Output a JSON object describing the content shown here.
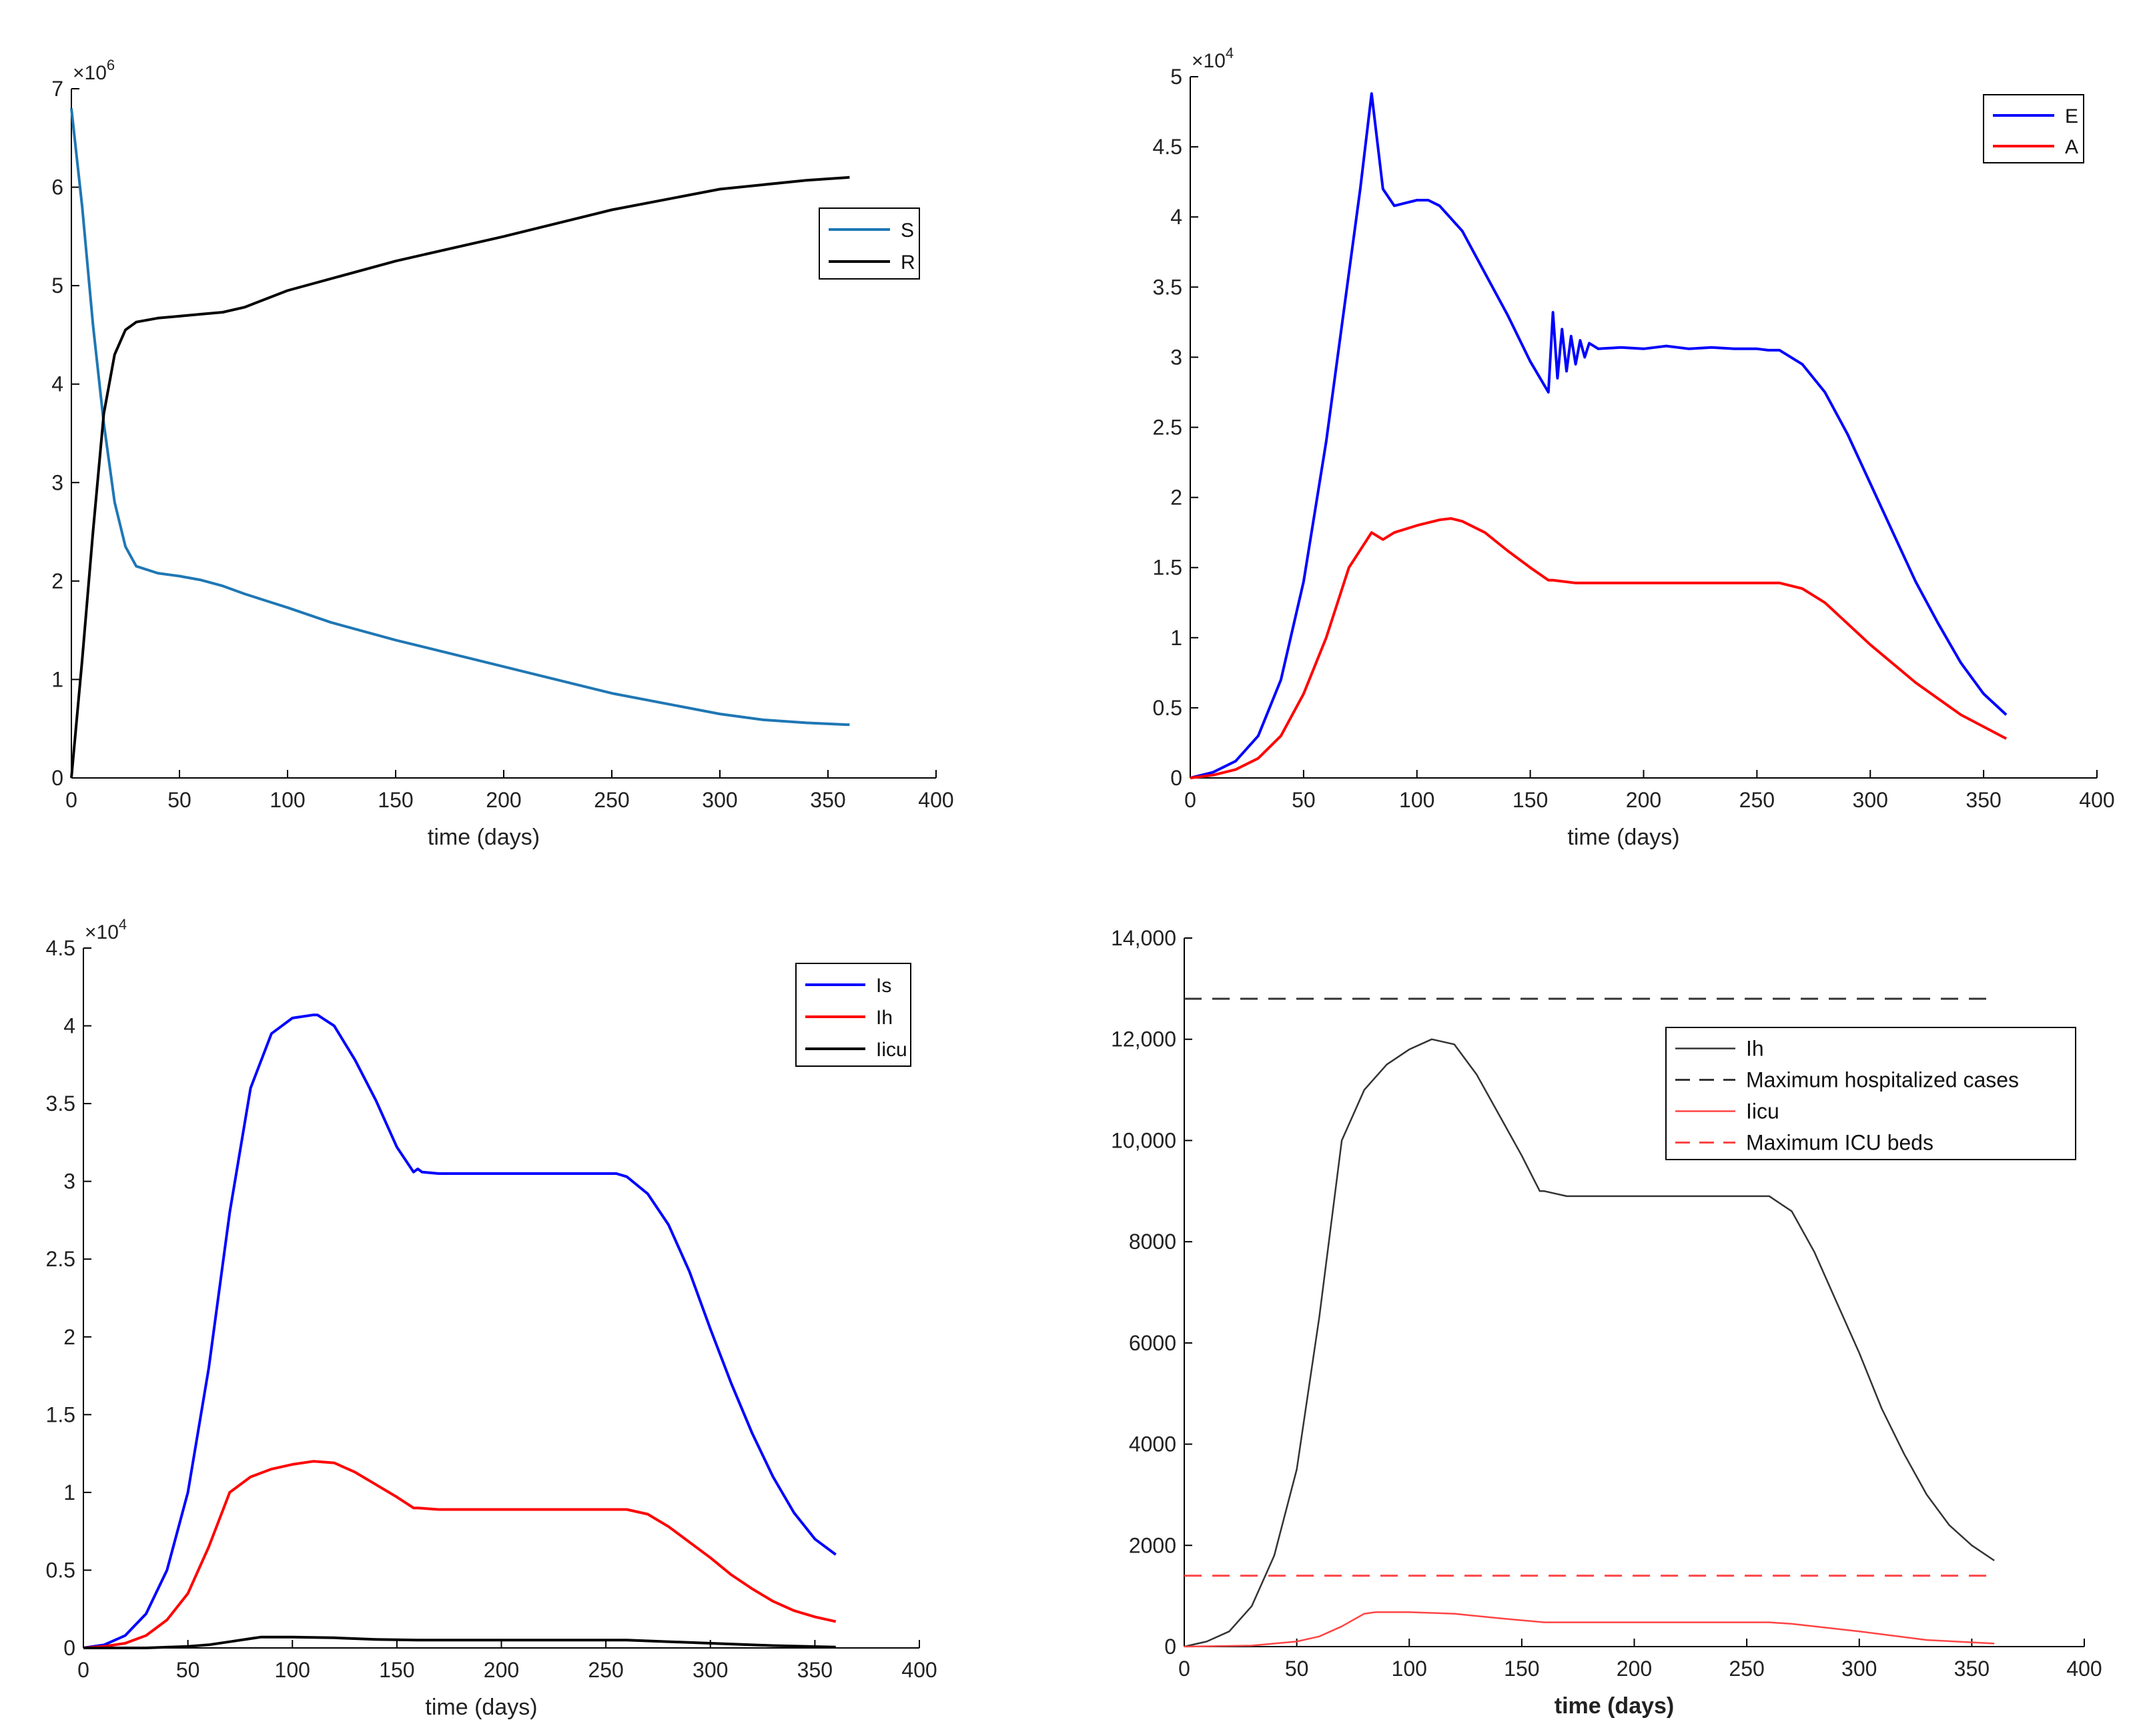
{
  "chart_data": [
    {
      "type": "line",
      "panel": "top-left",
      "xlabel": "time (days)",
      "ylabel": "",
      "xlim": [
        0,
        400
      ],
      "ylim": [
        0,
        7
      ],
      "xticks": [
        "0",
        "50",
        "100",
        "150",
        "200",
        "250",
        "300",
        "350",
        "400"
      ],
      "yticks": [
        "0",
        "1",
        "2",
        "3",
        "4",
        "5",
        "6",
        "7"
      ],
      "y_exponent": {
        "base": "×10",
        "power": "6"
      },
      "legend_position": "top-right",
      "series": [
        {
          "name": "S",
          "color": "#1f77b4",
          "x": [
            0,
            5,
            10,
            15,
            20,
            25,
            30,
            40,
            50,
            60,
            70,
            80,
            90,
            100,
            120,
            150,
            200,
            250,
            300,
            320,
            340,
            360
          ],
          "y": [
            6.8,
            5.8,
            4.6,
            3.6,
            2.8,
            2.35,
            2.15,
            2.08,
            2.05,
            2.01,
            1.95,
            1.87,
            1.8,
            1.73,
            1.58,
            1.4,
            1.13,
            0.86,
            0.65,
            0.59,
            0.56,
            0.54
          ]
        },
        {
          "name": "R",
          "color": "#000000",
          "x": [
            0,
            5,
            10,
            15,
            20,
            25,
            30,
            40,
            50,
            60,
            70,
            80,
            100,
            150,
            200,
            250,
            300,
            340,
            360
          ],
          "y": [
            0,
            1.2,
            2.5,
            3.7,
            4.3,
            4.55,
            4.63,
            4.67,
            4.69,
            4.71,
            4.73,
            4.78,
            4.95,
            5.25,
            5.5,
            5.77,
            5.98,
            6.07,
            6.1
          ]
        }
      ]
    },
    {
      "type": "line",
      "panel": "top-right",
      "xlabel": "time (days)",
      "ylabel": "",
      "xlim": [
        0,
        400
      ],
      "ylim": [
        0,
        5
      ],
      "xticks": [
        "0",
        "50",
        "100",
        "150",
        "200",
        "250",
        "300",
        "350",
        "400"
      ],
      "yticks": [
        "0",
        "0.5",
        "1",
        "1.5",
        "2",
        "2.5",
        "3",
        "3.5",
        "4",
        "4.5",
        "5"
      ],
      "y_exponent": {
        "base": "×10",
        "power": "4"
      },
      "legend_position": "top-right",
      "series": [
        {
          "name": "E",
          "color": "#0000ff",
          "x": [
            0,
            10,
            20,
            30,
            40,
            50,
            60,
            70,
            75,
            80,
            85,
            90,
            95,
            100,
            105,
            110,
            120,
            130,
            140,
            150,
            158,
            160,
            162,
            164,
            166,
            168,
            170,
            172,
            174,
            176,
            180,
            190,
            200,
            210,
            220,
            230,
            240,
            250,
            255,
            260,
            270,
            280,
            290,
            300,
            310,
            320,
            330,
            340,
            350,
            360
          ],
          "y": [
            0,
            0.04,
            0.12,
            0.3,
            0.7,
            1.4,
            2.4,
            3.6,
            4.2,
            4.88,
            4.2,
            4.08,
            4.1,
            4.12,
            4.12,
            4.08,
            3.9,
            3.6,
            3.3,
            2.97,
            2.75,
            3.32,
            2.85,
            3.2,
            2.9,
            3.15,
            2.95,
            3.12,
            3.0,
            3.1,
            3.06,
            3.07,
            3.06,
            3.08,
            3.06,
            3.07,
            3.06,
            3.06,
            3.05,
            3.05,
            2.95,
            2.75,
            2.45,
            2.1,
            1.75,
            1.4,
            1.1,
            0.82,
            0.6,
            0.45
          ]
        },
        {
          "name": "A",
          "color": "#ff0000",
          "x": [
            0,
            10,
            20,
            30,
            40,
            50,
            60,
            70,
            80,
            85,
            90,
            100,
            110,
            115,
            120,
            130,
            140,
            150,
            158,
            160,
            170,
            180,
            200,
            220,
            240,
            250,
            260,
            270,
            280,
            290,
            300,
            320,
            340,
            360
          ],
          "y": [
            0,
            0.02,
            0.06,
            0.14,
            0.3,
            0.6,
            1.0,
            1.5,
            1.75,
            1.7,
            1.75,
            1.8,
            1.84,
            1.85,
            1.83,
            1.75,
            1.62,
            1.5,
            1.41,
            1.41,
            1.39,
            1.39,
            1.39,
            1.39,
            1.39,
            1.39,
            1.39,
            1.35,
            1.25,
            1.1,
            0.95,
            0.68,
            0.45,
            0.28
          ]
        }
      ]
    },
    {
      "type": "line",
      "panel": "bottom-left",
      "xlabel": "time (days)",
      "ylabel": "",
      "xlim": [
        0,
        400
      ],
      "ylim": [
        0,
        4.5
      ],
      "xticks": [
        "0",
        "50",
        "100",
        "150",
        "200",
        "250",
        "300",
        "350",
        "400"
      ],
      "yticks": [
        "0",
        "0.5",
        "1",
        "1.5",
        "2",
        "2.5",
        "3",
        "3.5",
        "4",
        "4.5"
      ],
      "y_exponent": {
        "base": "×10",
        "power": "4"
      },
      "legend_position": "top-right",
      "series": [
        {
          "name": "Is",
          "color": "#0000ff",
          "x": [
            0,
            10,
            20,
            30,
            40,
            50,
            60,
            70,
            80,
            90,
            100,
            110,
            112,
            120,
            130,
            140,
            150,
            158,
            160,
            162,
            170,
            180,
            200,
            220,
            240,
            255,
            260,
            270,
            280,
            290,
            300,
            310,
            320,
            330,
            340,
            350,
            360
          ],
          "y": [
            0,
            0.02,
            0.08,
            0.22,
            0.5,
            1.0,
            1.8,
            2.8,
            3.6,
            3.95,
            4.05,
            4.07,
            4.07,
            4.0,
            3.78,
            3.52,
            3.22,
            3.06,
            3.08,
            3.06,
            3.05,
            3.05,
            3.05,
            3.05,
            3.05,
            3.05,
            3.03,
            2.92,
            2.72,
            2.42,
            2.05,
            1.7,
            1.38,
            1.1,
            0.87,
            0.7,
            0.6
          ]
        },
        {
          "name": "Ih",
          "color": "#ff0000",
          "x": [
            0,
            10,
            20,
            30,
            40,
            50,
            60,
            70,
            80,
            90,
            100,
            110,
            120,
            130,
            140,
            150,
            158,
            160,
            170,
            180,
            200,
            220,
            240,
            260,
            270,
            280,
            290,
            300,
            310,
            320,
            330,
            340,
            350,
            360
          ],
          "y": [
            0,
            0.01,
            0.03,
            0.08,
            0.18,
            0.35,
            0.65,
            1.0,
            1.1,
            1.15,
            1.18,
            1.2,
            1.19,
            1.13,
            1.05,
            0.97,
            0.9,
            0.9,
            0.89,
            0.89,
            0.89,
            0.89,
            0.89,
            0.89,
            0.86,
            0.78,
            0.68,
            0.58,
            0.47,
            0.38,
            0.3,
            0.24,
            0.2,
            0.17
          ]
        },
        {
          "name": "Iicu",
          "color": "#000000",
          "x": [
            0,
            30,
            50,
            60,
            70,
            80,
            85,
            100,
            120,
            140,
            160,
            200,
            260,
            300,
            330,
            360
          ],
          "y": [
            0,
            0,
            0.01,
            0.02,
            0.04,
            0.06,
            0.07,
            0.07,
            0.065,
            0.055,
            0.05,
            0.05,
            0.05,
            0.03,
            0.015,
            0.005
          ]
        }
      ]
    },
    {
      "type": "line",
      "panel": "bottom-right",
      "xlabel": "time (days)",
      "ylabel": "",
      "xlim": [
        0,
        400
      ],
      "ylim": [
        0,
        14000
      ],
      "xticks": [
        "0",
        "50",
        "100",
        "150",
        "200",
        "250",
        "300",
        "350",
        "400"
      ],
      "yticks": [
        "0",
        "2000",
        "4000",
        "6000",
        "8000",
        "10,000",
        "12,000",
        "14,000"
      ],
      "legend_position": "top-right",
      "series": [
        {
          "name": "Ih",
          "color": "#333333",
          "dash": "solid",
          "x": [
            0,
            10,
            20,
            30,
            40,
            50,
            60,
            70,
            80,
            90,
            100,
            110,
            120,
            130,
            140,
            150,
            158,
            160,
            170,
            180,
            200,
            220,
            240,
            260,
            270,
            280,
            290,
            300,
            310,
            320,
            330,
            340,
            350,
            360
          ],
          "y": [
            0,
            100,
            300,
            800,
            1800,
            3500,
            6500,
            10000,
            11000,
            11500,
            11800,
            12000,
            11900,
            11300,
            10500,
            9700,
            9000,
            9000,
            8900,
            8900,
            8900,
            8900,
            8900,
            8900,
            8600,
            7800,
            6800,
            5800,
            4700,
            3800,
            3000,
            2400,
            2000,
            1700
          ]
        },
        {
          "name": "Maximum hospitalized cases",
          "color": "#333333",
          "dash": "dashed",
          "x": [
            0,
            360
          ],
          "y": [
            12800,
            12800
          ]
        },
        {
          "name": "Iicu",
          "color": "#ff4444",
          "dash": "solid",
          "x": [
            0,
            30,
            50,
            60,
            70,
            80,
            85,
            100,
            120,
            140,
            160,
            200,
            260,
            270,
            300,
            330,
            360
          ],
          "y": [
            0,
            20,
            100,
            200,
            400,
            650,
            680,
            680,
            650,
            560,
            480,
            480,
            480,
            450,
            300,
            130,
            60
          ]
        },
        {
          "name": "Maximum ICU beds",
          "color": "#ff4444",
          "dash": "dashed",
          "x": [
            0,
            360
          ],
          "y": [
            1400,
            1400
          ]
        }
      ]
    }
  ]
}
